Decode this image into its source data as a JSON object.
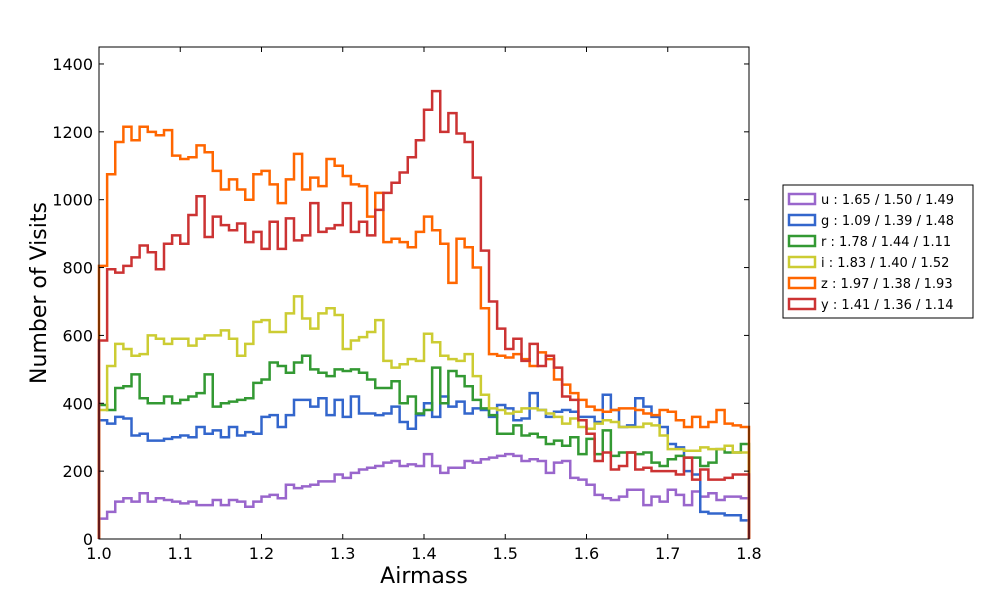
{
  "chart_data": {
    "type": "line",
    "xlabel": "Airmass",
    "ylabel": "Number of Visits",
    "xlim": [
      1.0,
      1.8
    ],
    "ylim": [
      0,
      1450
    ],
    "x_ticks": [
      "1.0",
      "1.1",
      "1.2",
      "1.3",
      "1.4",
      "1.5",
      "1.6",
      "1.7",
      "1.8"
    ],
    "y_ticks": [
      "0",
      "200",
      "400",
      "600",
      "800",
      "1000",
      "1200",
      "1400"
    ],
    "grid": false,
    "legend_position": "right",
    "bin_width": 0.01,
    "bin_start": 1.0,
    "series": [
      {
        "name": "u : 1.65 / 1.50 / 1.49",
        "color": "#9966cc",
        "values": [
          60,
          80,
          110,
          120,
          110,
          135,
          110,
          120,
          115,
          110,
          105,
          110,
          100,
          100,
          115,
          100,
          115,
          110,
          95,
          110,
          125,
          130,
          120,
          160,
          150,
          155,
          160,
          170,
          170,
          190,
          180,
          195,
          205,
          210,
          215,
          225,
          230,
          215,
          220,
          215,
          250,
          215,
          195,
          210,
          210,
          230,
          225,
          235,
          240,
          245,
          250,
          245,
          230,
          235,
          230,
          195,
          225,
          230,
          180,
          175,
          160,
          130,
          120,
          115,
          125,
          145,
          145,
          100,
          125,
          110,
          145,
          130,
          100,
          140,
          125,
          135,
          115,
          125,
          125,
          120
        ]
      },
      {
        "name": "g : 1.09 / 1.39 / 1.48",
        "color": "#3366cc",
        "values": [
          350,
          340,
          360,
          355,
          305,
          310,
          290,
          290,
          295,
          300,
          305,
          300,
          330,
          310,
          320,
          300,
          330,
          305,
          315,
          310,
          360,
          365,
          330,
          365,
          410,
          410,
          390,
          415,
          365,
          410,
          360,
          420,
          370,
          370,
          365,
          370,
          390,
          345,
          325,
          365,
          400,
          360,
          420,
          390,
          405,
          370,
          385,
          380,
          360,
          395,
          385,
          350,
          355,
          430,
          380,
          360,
          375,
          380,
          375,
          360,
          360,
          345,
          425,
          380,
          330,
          335,
          415,
          390,
          360,
          330,
          280,
          270,
          200,
          190,
          80,
          75,
          75,
          70,
          70,
          55
        ]
      },
      {
        "name": "r : 1.78 / 1.44 / 1.11",
        "color": "#339933",
        "values": [
          395,
          380,
          445,
          450,
          485,
          415,
          400,
          400,
          420,
          400,
          410,
          420,
          430,
          485,
          390,
          400,
          405,
          410,
          415,
          460,
          470,
          520,
          510,
          490,
          520,
          540,
          500,
          490,
          480,
          500,
          495,
          500,
          490,
          470,
          445,
          445,
          465,
          400,
          420,
          370,
          380,
          505,
          400,
          495,
          480,
          450,
          410,
          385,
          365,
          310,
          310,
          335,
          305,
          310,
          300,
          280,
          290,
          275,
          300,
          250,
          295,
          250,
          320,
          245,
          255,
          255,
          250,
          255,
          225,
          215,
          235,
          245,
          240,
          240,
          215,
          225,
          265,
          255,
          255,
          280
        ]
      },
      {
        "name": "i : 1.83 / 1.40 / 1.52",
        "color": "#cccc33",
        "values": [
          380,
          510,
          575,
          560,
          540,
          545,
          600,
          590,
          575,
          590,
          590,
          570,
          590,
          600,
          600,
          615,
          590,
          540,
          575,
          640,
          645,
          610,
          610,
          665,
          715,
          650,
          620,
          665,
          680,
          660,
          560,
          585,
          595,
          610,
          645,
          525,
          505,
          515,
          530,
          525,
          605,
          580,
          540,
          530,
          525,
          545,
          480,
          425,
          385,
          380,
          370,
          375,
          385,
          385,
          380,
          370,
          360,
          340,
          355,
          330,
          325,
          340,
          350,
          345,
          330,
          330,
          330,
          340,
          335,
          305,
          265,
          265,
          260,
          260,
          270,
          265,
          265,
          275,
          255,
          255
        ]
      },
      {
        "name": "z : 1.97 / 1.38 / 1.93",
        "color": "#ff6600",
        "values": [
          805,
          1075,
          1170,
          1215,
          1175,
          1215,
          1200,
          1190,
          1205,
          1130,
          1120,
          1125,
          1160,
          1140,
          1085,
          1030,
          1060,
          1030,
          1000,
          1075,
          1085,
          1045,
          990,
          1060,
          1135,
          1030,
          1065,
          1040,
          1120,
          1100,
          1070,
          1045,
          1040,
          950,
          1020,
          875,
          885,
          875,
          860,
          905,
          950,
          910,
          870,
          755,
          885,
          860,
          800,
          680,
          545,
          540,
          535,
          545,
          530,
          510,
          550,
          530,
          470,
          455,
          430,
          410,
          390,
          380,
          375,
          380,
          385,
          385,
          380,
          370,
          365,
          380,
          375,
          350,
          330,
          360,
          330,
          345,
          380,
          340,
          335,
          330
        ]
      },
      {
        "name": "y : 1.41 / 1.36 / 1.14",
        "color": "#cc3333",
        "values": [
          585,
          795,
          785,
          805,
          830,
          865,
          845,
          795,
          870,
          895,
          870,
          955,
          1010,
          890,
          950,
          925,
          910,
          930,
          875,
          905,
          855,
          935,
          855,
          945,
          880,
          895,
          990,
          905,
          915,
          925,
          990,
          905,
          935,
          895,
          970,
          1020,
          1050,
          1080,
          1125,
          1175,
          1265,
          1320,
          1200,
          1255,
          1195,
          1170,
          1065,
          850,
          700,
          620,
          560,
          590,
          525,
          575,
          510,
          540,
          505,
          420,
          410,
          350,
          310,
          230,
          255,
          205,
          215,
          255,
          205,
          210,
          200,
          200,
          200,
          190,
          240,
          175,
          205,
          175,
          175,
          180,
          190,
          190
        ]
      }
    ]
  }
}
